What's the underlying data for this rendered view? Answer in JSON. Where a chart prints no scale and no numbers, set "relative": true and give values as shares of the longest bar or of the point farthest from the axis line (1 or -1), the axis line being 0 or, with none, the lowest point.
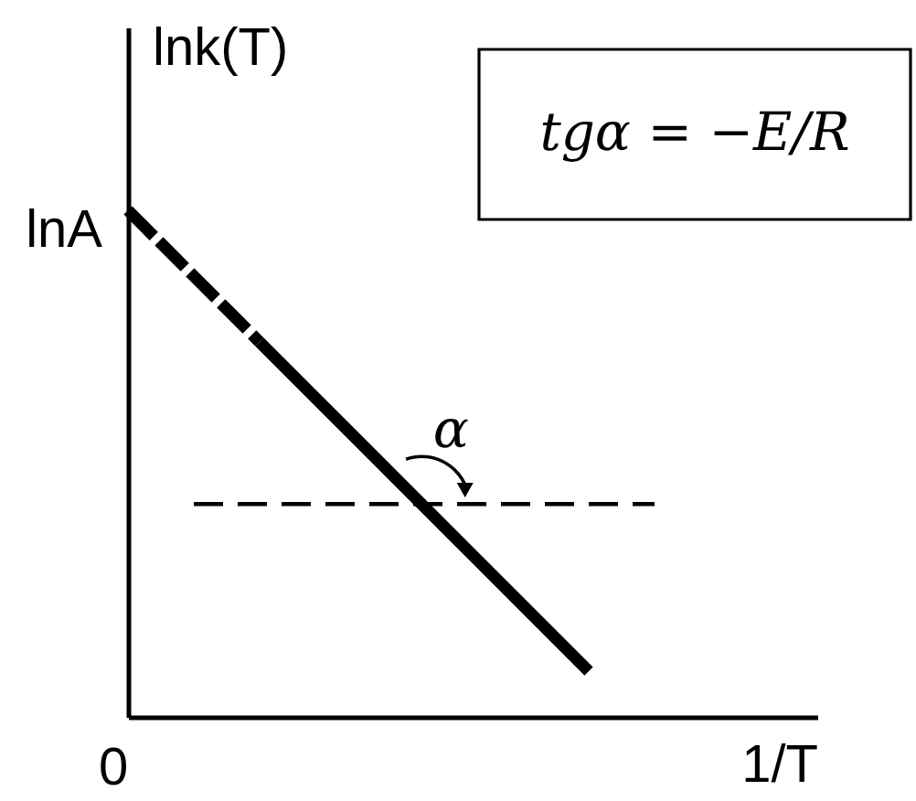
{
  "chart_data": {
    "type": "line",
    "relative": true,
    "xlabel": "1/T",
    "ylabel": "lnk(T)",
    "categories": [
      null,
      null,
      null,
      null,
      null,
      null,
      null,
      null,
      null
    ],
    "series": [
      {
        "color": "#000000",
        "line_style": "dashed",
        "values": [
          1,
          0.87,
          0.74,
          null,
          null,
          null,
          null,
          null,
          null
        ]
      },
      {
        "color": "#000000",
        "line_style": "solid",
        "values": [
          null,
          null,
          0.74,
          0.61,
          0.48,
          0.35,
          0.22,
          0.09,
          null
        ]
      },
      {
        "color": "#000000",
        "line_style": "dashed",
        "values": [
          null,
          0.42,
          0.42,
          0.42,
          0.42,
          0.42,
          0.42,
          0.42,
          0.42
        ]
      }
    ],
    "annotations": [
      "lnA",
      "0",
      {
        "text": "α",
        "y": 0.42
      },
      "tgα = −E/R"
    ]
  }
}
